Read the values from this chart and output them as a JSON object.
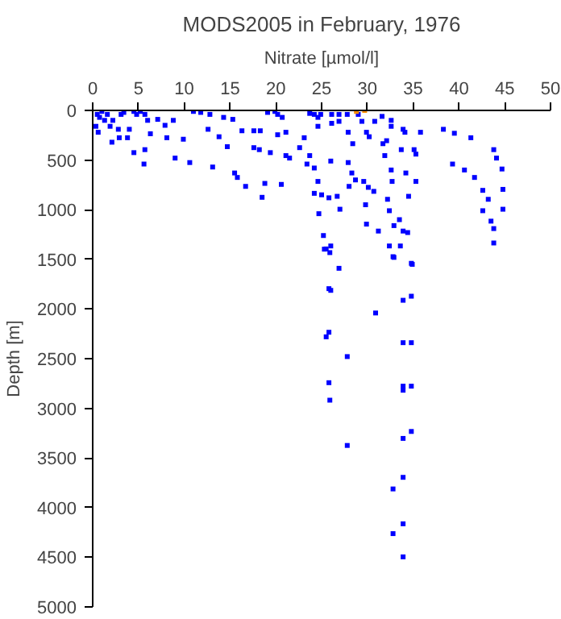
{
  "chart_data": {
    "type": "scatter",
    "title": "MODS2005 in February, 1976",
    "xlabel": "Nitrate [µmol/l]",
    "ylabel": "Depth [m]",
    "xlim": [
      0,
      50
    ],
    "xticks": [
      0,
      5,
      10,
      15,
      20,
      25,
      30,
      35,
      40,
      45,
      50
    ],
    "ylim": [
      5000,
      0
    ],
    "yticks": [
      0,
      500,
      1000,
      1500,
      2000,
      2500,
      3000,
      3500,
      4000,
      4500,
      5000
    ],
    "marker": "square",
    "grid": false,
    "series": [
      {
        "color": "#0000ff",
        "x": [
          0.5,
          0.75,
          1,
          1.3,
          1.6,
          0.35,
          0.6,
          1.9,
          2.2,
          2.1,
          2.8,
          3.1,
          3.4,
          2.9,
          3.8,
          4,
          4.5,
          4.8,
          5.2,
          5.7,
          6,
          6.3,
          5.7,
          5.6,
          4.5,
          7.1,
          7.9,
          8.1,
          8.8,
          9,
          9.9,
          10.6,
          11,
          11.8,
          12.8,
          12.6,
          13.1,
          13.8,
          14.3,
          14.7,
          15.3,
          15.5,
          15.8,
          16.3,
          16.7,
          17.6,
          17.6,
          18.3,
          18.2,
          18.5,
          18.8,
          19.4,
          19.1,
          19.9,
          20.2,
          20.7,
          20.2,
          20.6,
          21.1,
          21.1,
          21.5,
          22.6,
          23.1,
          23.7,
          24.2,
          24.6,
          24.6,
          24.9,
          23.4,
          23.7,
          24.2,
          24.2,
          24.6,
          24.7,
          25,
          25.2,
          25.5,
          25.8,
          26,
          26,
          26.1,
          26.1,
          26.7,
          26.9,
          26.9,
          27,
          27.8,
          27.9,
          27.9,
          28,
          28.3,
          28.4,
          28.7,
          29,
          29.4,
          29.6,
          29.8,
          29.9,
          29.9,
          30.1,
          30.2,
          30.7,
          30.8,
          31.2,
          31.6,
          31.7,
          31.9,
          32.1,
          32.2,
          32.4,
          32.4,
          32.6,
          32.6,
          32.6,
          32.7,
          32.9,
          32.9,
          33.5,
          33.6,
          33.9,
          33.7,
          33.9,
          34.1,
          34.2,
          34.5,
          34.4,
          34.8,
          35.1,
          35.3,
          35.8,
          35.3,
          38.3,
          39.5,
          39.3,
          40.6,
          41.3,
          41.7,
          42.6,
          42.6,
          43.2,
          43.5,
          43.8,
          43.8,
          43.8,
          44.1,
          44.7,
          44.8,
          44.8,
          25.3,
          25.9,
          26.9,
          32.8,
          34.9,
          25.8,
          26,
          30.9,
          33.9,
          34.8,
          25.8,
          25.5,
          33.9,
          34.8,
          27.8,
          25.8,
          25.9,
          33.9,
          33.9,
          34.8,
          33.9,
          34.8,
          27.8,
          33.9,
          32.8,
          33.9,
          32.8,
          33.9
        ],
        "values": [
          40,
          70,
          10,
          100,
          40,
          160,
          220,
          160,
          100,
          320,
          190,
          40,
          20,
          275,
          275,
          190,
          10,
          40,
          10,
          40,
          100,
          235,
          395,
          540,
          425,
          90,
          150,
          275,
          100,
          480,
          290,
          525,
          10,
          20,
          40,
          190,
          570,
          265,
          70,
          365,
          90,
          630,
          675,
          205,
          765,
          205,
          375,
          205,
          395,
          875,
          735,
          425,
          20,
          10,
          40,
          70,
          245,
          745,
          220,
          455,
          480,
          375,
          275,
          30,
          40,
          70,
          160,
          40,
          540,
          455,
          580,
          835,
          715,
          1040,
          850,
          1260,
          1395,
          880,
          510,
          1365,
          40,
          130,
          865,
          40,
          110,
          995,
          40,
          220,
          525,
          765,
          630,
          335,
          700,
          40,
          110,
          715,
          950,
          220,
          1145,
          775,
          265,
          815,
          110,
          1215,
          60,
          335,
          455,
          305,
          895,
          1010,
          1365,
          100,
          160,
          600,
          715,
          1480,
          1160,
          1100,
          1365,
          190,
          395,
          1215,
          220,
          630,
          865,
          1230,
          1540,
          395,
          440,
          220,
          715,
          190,
          230,
          540,
          600,
          275,
          675,
          805,
          1010,
          895,
          1115,
          1190,
          1335,
          395,
          480,
          590,
          795,
          995,
          1397,
          1432,
          1590,
          1473,
          1550,
          1795,
          1812,
          2040,
          1912,
          1871,
          2234,
          2280,
          2339,
          2339,
          2479,
          2742,
          2918,
          2777,
          2818,
          2777,
          3303,
          3233,
          3374,
          3695,
          3812,
          4163,
          4262,
          4496
        ]
      },
      {
        "color": "#ff8c00",
        "x": [
          28.8,
          29.7
        ],
        "values": [
          10,
          0
        ]
      }
    ]
  }
}
